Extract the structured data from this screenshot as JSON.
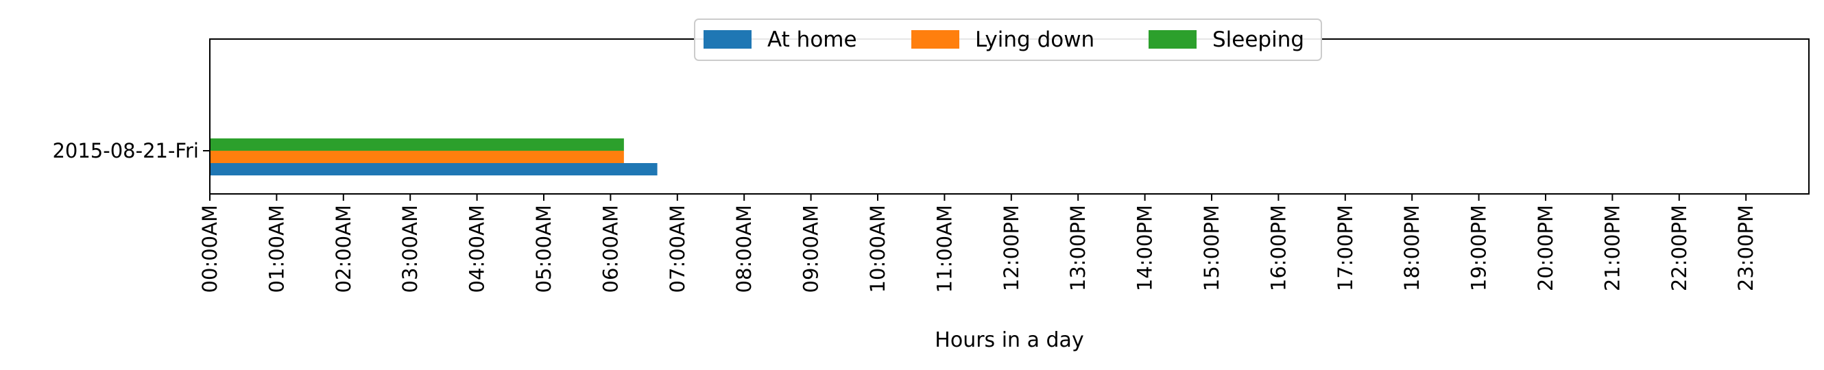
{
  "chart_data": {
    "type": "bar",
    "orientation": "horizontal",
    "title": "",
    "xlabel": "Hours in a day",
    "ylabel": "",
    "xlim": [
      0,
      24
    ],
    "x_ticks": [
      {
        "value": 0,
        "label": "00:00AM"
      },
      {
        "value": 1,
        "label": "01:00AM"
      },
      {
        "value": 2,
        "label": "02:00AM"
      },
      {
        "value": 3,
        "label": "03:00AM"
      },
      {
        "value": 4,
        "label": "04:00AM"
      },
      {
        "value": 5,
        "label": "05:00AM"
      },
      {
        "value": 6,
        "label": "06:00AM"
      },
      {
        "value": 7,
        "label": "07:00AM"
      },
      {
        "value": 8,
        "label": "08:00AM"
      },
      {
        "value": 9,
        "label": "09:00AM"
      },
      {
        "value": 10,
        "label": "10:00AM"
      },
      {
        "value": 11,
        "label": "11:00AM"
      },
      {
        "value": 12,
        "label": "12:00PM"
      },
      {
        "value": 13,
        "label": "13:00PM"
      },
      {
        "value": 14,
        "label": "14:00PM"
      },
      {
        "value": 15,
        "label": "15:00PM"
      },
      {
        "value": 16,
        "label": "16:00PM"
      },
      {
        "value": 17,
        "label": "17:00PM"
      },
      {
        "value": 18,
        "label": "18:00PM"
      },
      {
        "value": 19,
        "label": "19:00PM"
      },
      {
        "value": 20,
        "label": "20:00PM"
      },
      {
        "value": 21,
        "label": "21:00PM"
      },
      {
        "value": 22,
        "label": "22:00PM"
      },
      {
        "value": 23,
        "label": "23:00PM"
      }
    ],
    "categories": [
      "2015-08-21-Fri"
    ],
    "series": [
      {
        "name": "At home",
        "color": "#1f77b4",
        "intervals": [
          [
            [
              0,
              6.7
            ]
          ]
        ]
      },
      {
        "name": "Lying down",
        "color": "#ff7f0e",
        "intervals": [
          [
            [
              0,
              6.2
            ]
          ]
        ]
      },
      {
        "name": "Sleeping",
        "color": "#2ca02c",
        "intervals": [
          [
            [
              0,
              6.2
            ]
          ]
        ]
      }
    ],
    "legend": {
      "position": "top-center",
      "columns": 3
    },
    "grid": false
  }
}
